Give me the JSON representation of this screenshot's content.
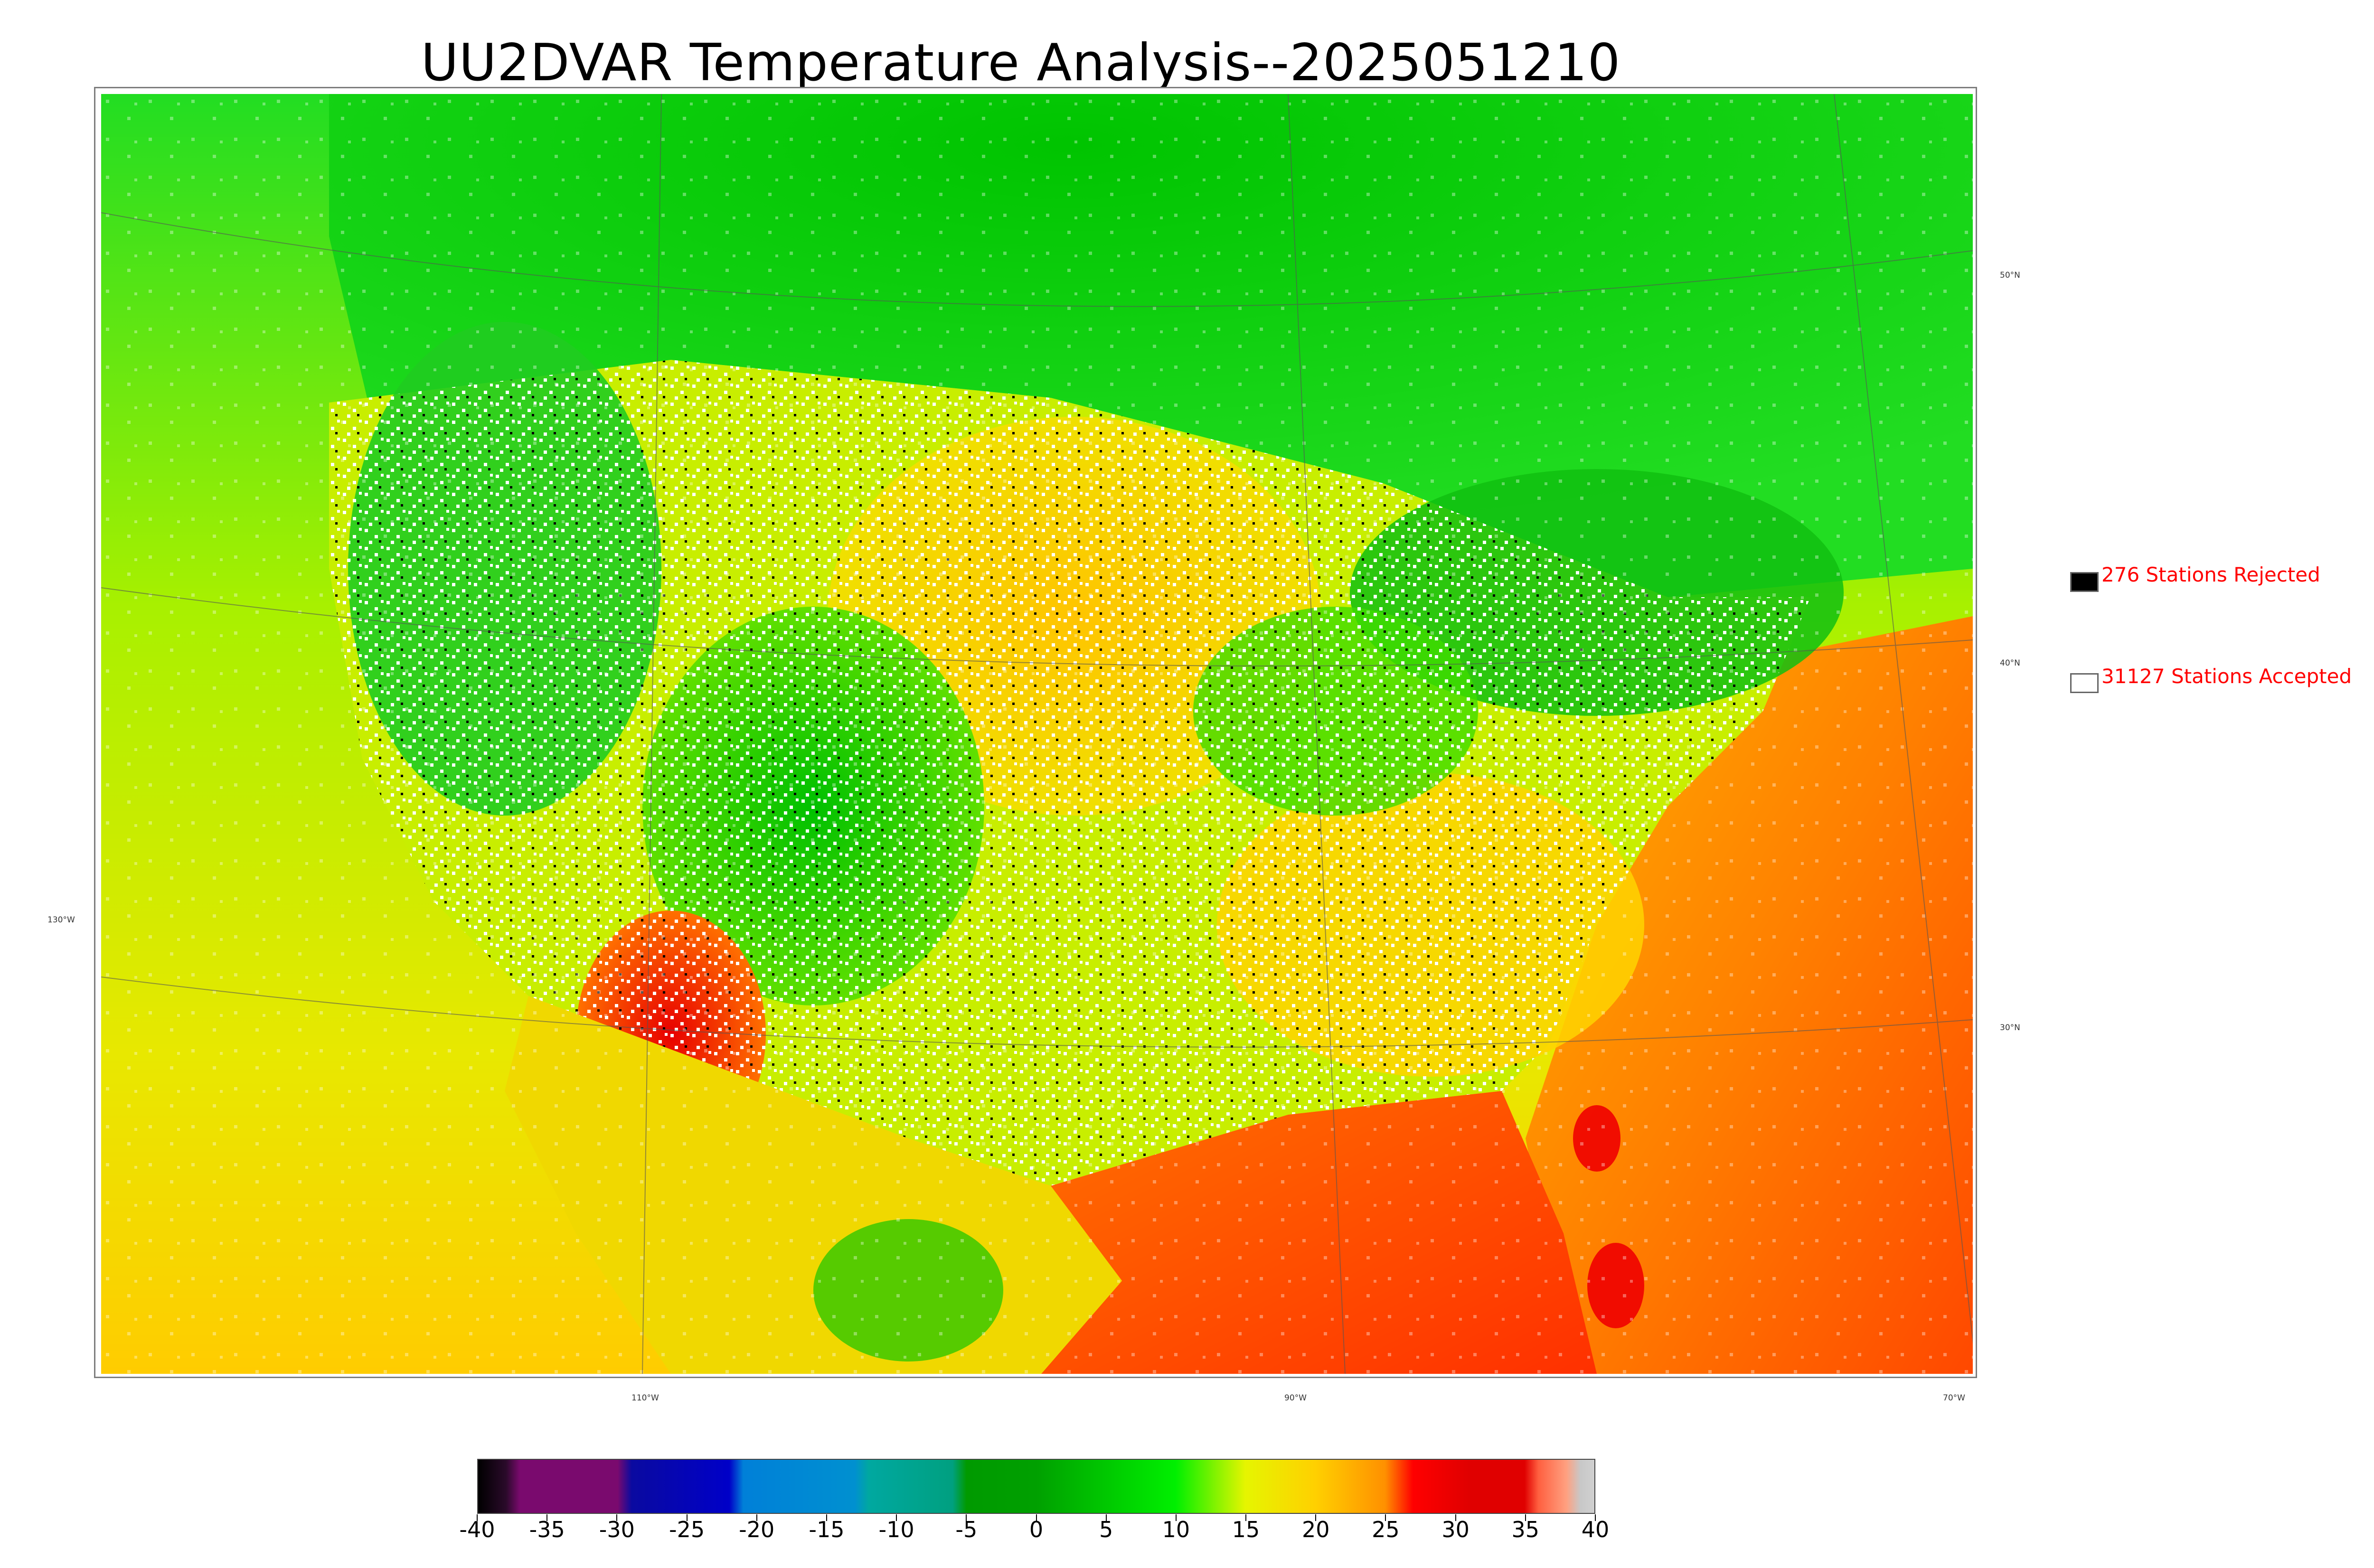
{
  "title": "UU2DVAR Temperature Analysis--2025051210",
  "map": {
    "lon_labels": [
      "110°W",
      "90°W",
      "70°W"
    ],
    "lat_labels_right": [
      "50°N",
      "40°N",
      "30°N"
    ],
    "lat_label_left": "130°W",
    "colors": {
      "background_land_north": "#1ad41a",
      "cold": "#00a600",
      "mild": "#c8f000",
      "warm": "#ffc800",
      "hot": "#ff6000",
      "extreme": "#e60000",
      "station_accepted": "#ffffff",
      "station_rejected": "#000000"
    }
  },
  "legend": {
    "rejected": {
      "label": "276 Stations Rejected",
      "swatch_color": "#000000",
      "count": 276
    },
    "accepted": {
      "label": "31127 Stations Accepted",
      "swatch_color": "#ffffff",
      "count": 31127
    }
  },
  "colorbar": {
    "ticks": [
      "-40",
      "-35",
      "-30",
      "-25",
      "-20",
      "-15",
      "-10",
      "-5",
      "0",
      "5",
      "10",
      "15",
      "20",
      "25",
      "30",
      "35",
      "40"
    ],
    "min": -40,
    "max": 40,
    "stops": [
      {
        "value": -40,
        "color": "#000000"
      },
      {
        "value": -38,
        "color": "#2a0a2a"
      },
      {
        "value": -37,
        "color": "#7a0a6e"
      },
      {
        "value": -30,
        "color": "#7a0a6e"
      },
      {
        "value": -29,
        "color": "#0a0aa0"
      },
      {
        "value": -22,
        "color": "#0000c8"
      },
      {
        "value": -21,
        "color": "#0080d8"
      },
      {
        "value": -13,
        "color": "#0090d0"
      },
      {
        "value": -12,
        "color": "#00a8a0"
      },
      {
        "value": -6,
        "color": "#00a080"
      },
      {
        "value": -5,
        "color": "#009a00"
      },
      {
        "value": 0,
        "color": "#00a000"
      },
      {
        "value": 10,
        "color": "#00f000"
      },
      {
        "value": 15,
        "color": "#e6f500"
      },
      {
        "value": 20,
        "color": "#ffd000"
      },
      {
        "value": 25,
        "color": "#ff9000"
      },
      {
        "value": 27,
        "color": "#ff0000"
      },
      {
        "value": 31,
        "color": "#e00000"
      },
      {
        "value": 35,
        "color": "#e00000"
      },
      {
        "value": 36,
        "color": "#ff6040"
      },
      {
        "value": 38,
        "color": "#ffa080"
      },
      {
        "value": 39,
        "color": "#c8c8c8"
      },
      {
        "value": 40,
        "color": "#d0d0d0"
      }
    ]
  }
}
